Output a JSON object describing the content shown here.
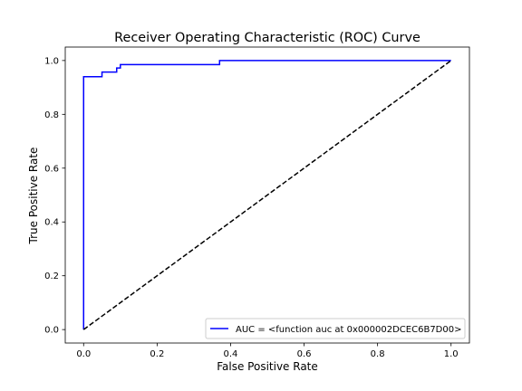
{
  "chart_data": {
    "type": "line",
    "title": "Receiver Operating Characteristic (ROC) Curve",
    "xlabel": "False Positive Rate",
    "ylabel": "True Positive Rate",
    "xlim": [
      -0.05,
      1.05
    ],
    "ylim": [
      -0.05,
      1.05
    ],
    "xticks": [
      "0.0",
      "0.2",
      "0.4",
      "0.6",
      "0.8",
      "1.0"
    ],
    "yticks": [
      "0.0",
      "0.2",
      "0.4",
      "0.6",
      "0.8",
      "1.0"
    ],
    "grid": false,
    "legend_position": "lower-right",
    "series": [
      {
        "name": "AUC = <function auc at 0x000002DCEC6B7D00>",
        "color": "#0000ff",
        "style": "solid",
        "x": [
          0.0,
          0.0,
          0.05,
          0.05,
          0.09,
          0.09,
          0.1,
          0.1,
          0.37,
          0.37,
          1.0
        ],
        "y": [
          0.0,
          0.94,
          0.94,
          0.957,
          0.957,
          0.972,
          0.972,
          0.985,
          0.985,
          1.0,
          1.0
        ]
      },
      {
        "color": "#000000",
        "style": "dashed",
        "x": [
          0.0,
          1.0
        ],
        "y": [
          0.0,
          1.0
        ]
      }
    ]
  }
}
